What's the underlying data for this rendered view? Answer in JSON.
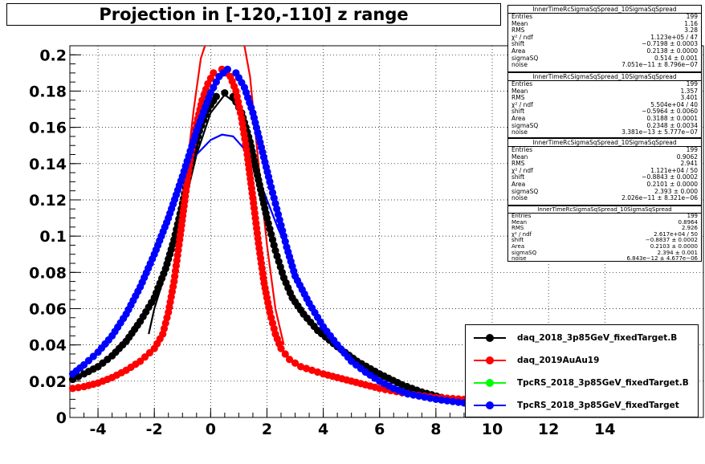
{
  "title": "Projection in [-120,-110] z range",
  "colors": {
    "black": "#000000",
    "red": "#ff0000",
    "green": "#00ff00",
    "blue": "#0000ff"
  },
  "chart_data": {
    "type": "scatter",
    "title": "Projection in [-120,-110] z range",
    "xlabel": "",
    "ylabel": "",
    "xlim": [
      -5,
      17.5
    ],
    "ylim": [
      0,
      0.205
    ],
    "grid": true,
    "legend_position": "bottom-right",
    "xticks": [
      "-4",
      "-2",
      "0",
      "2",
      "4",
      "6",
      "8",
      "10",
      "12",
      "14"
    ],
    "xtick_values": [
      -4,
      -2,
      0,
      2,
      4,
      6,
      8,
      10,
      12,
      14
    ],
    "yticks": [
      "0",
      "0.02",
      "0.04",
      "0.06",
      "0.08",
      "0.1",
      "0.12",
      "0.14",
      "0.16",
      "0.18",
      "0.2"
    ],
    "ytick_values": [
      0,
      0.02,
      0.04,
      0.06,
      0.08,
      0.1,
      0.12,
      0.14,
      0.16,
      0.18,
      0.2
    ],
    "series": [
      {
        "name": "daq_2018_3p85GeV_fixedTarget.B",
        "color": "#000000",
        "points": [
          [
            -4.9,
            0.021
          ],
          [
            -4.5,
            0.024
          ],
          [
            -4.0,
            0.028
          ],
          [
            -3.5,
            0.034
          ],
          [
            -3.0,
            0.042
          ],
          [
            -2.5,
            0.053
          ],
          [
            -2.0,
            0.066
          ],
          [
            -1.6,
            0.082
          ],
          [
            -1.3,
            0.098
          ],
          [
            -1.0,
            0.118
          ],
          [
            -0.7,
            0.14
          ],
          [
            -0.4,
            0.158
          ],
          [
            -0.1,
            0.17
          ],
          [
            0.2,
            0.177
          ],
          [
            0.5,
            0.179
          ],
          [
            0.8,
            0.177
          ],
          [
            1.1,
            0.168
          ],
          [
            1.4,
            0.152
          ],
          [
            1.7,
            0.131
          ],
          [
            2.0,
            0.11
          ],
          [
            2.3,
            0.092
          ],
          [
            2.6,
            0.077
          ],
          [
            2.9,
            0.066
          ],
          [
            3.3,
            0.057
          ],
          [
            3.8,
            0.048
          ],
          [
            4.5,
            0.039
          ],
          [
            5.2,
            0.031
          ],
          [
            6.0,
            0.024
          ],
          [
            6.8,
            0.018
          ],
          [
            7.5,
            0.014
          ],
          [
            8.2,
            0.011
          ],
          [
            9.0,
            0.008
          ],
          [
            10.0,
            0.006
          ]
        ]
      },
      {
        "name": "daq_2019AuAu19",
        "color": "#ff0000",
        "points": [
          [
            -4.9,
            0.016
          ],
          [
            -4.5,
            0.017
          ],
          [
            -4.0,
            0.019
          ],
          [
            -3.5,
            0.022
          ],
          [
            -3.0,
            0.026
          ],
          [
            -2.5,
            0.031
          ],
          [
            -2.0,
            0.038
          ],
          [
            -1.7,
            0.046
          ],
          [
            -1.5,
            0.058
          ],
          [
            -1.3,
            0.075
          ],
          [
            -1.1,
            0.098
          ],
          [
            -0.9,
            0.122
          ],
          [
            -0.7,
            0.145
          ],
          [
            -0.5,
            0.162
          ],
          [
            -0.3,
            0.175
          ],
          [
            -0.1,
            0.184
          ],
          [
            0.1,
            0.19
          ],
          [
            0.4,
            0.192
          ],
          [
            0.7,
            0.188
          ],
          [
            0.9,
            0.18
          ],
          [
            1.1,
            0.165
          ],
          [
            1.3,
            0.145
          ],
          [
            1.5,
            0.121
          ],
          [
            1.7,
            0.096
          ],
          [
            1.9,
            0.074
          ],
          [
            2.1,
            0.058
          ],
          [
            2.3,
            0.046
          ],
          [
            2.5,
            0.038
          ],
          [
            2.8,
            0.032
          ],
          [
            3.2,
            0.028
          ],
          [
            4.0,
            0.024
          ],
          [
            5.0,
            0.02
          ],
          [
            6.0,
            0.016
          ],
          [
            7.0,
            0.013
          ],
          [
            8.0,
            0.011
          ],
          [
            9.0,
            0.01
          ],
          [
            10.0,
            0.009
          ]
        ]
      },
      {
        "name": "TpcRS_2018_3p85GeV_fixedTarget.B",
        "color": "#00ff00",
        "points": []
      },
      {
        "name": "TpcRS_2018_3p85GeV_fixedTarget",
        "color": "#0000ff",
        "points": [
          [
            -4.9,
            0.024
          ],
          [
            -4.5,
            0.029
          ],
          [
            -4.0,
            0.036
          ],
          [
            -3.5,
            0.045
          ],
          [
            -3.0,
            0.057
          ],
          [
            -2.5,
            0.072
          ],
          [
            -2.0,
            0.09
          ],
          [
            -1.5,
            0.11
          ],
          [
            -1.0,
            0.133
          ],
          [
            -0.5,
            0.158
          ],
          [
            0.0,
            0.179
          ],
          [
            0.3,
            0.188
          ],
          [
            0.6,
            0.192
          ],
          [
            0.9,
            0.19
          ],
          [
            1.2,
            0.182
          ],
          [
            1.5,
            0.168
          ],
          [
            1.8,
            0.149
          ],
          [
            2.1,
            0.13
          ],
          [
            2.4,
            0.112
          ],
          [
            2.7,
            0.094
          ],
          [
            3.0,
            0.078
          ],
          [
            3.5,
            0.063
          ],
          [
            4.0,
            0.05
          ],
          [
            4.5,
            0.04
          ],
          [
            5.0,
            0.031
          ],
          [
            5.5,
            0.025
          ],
          [
            6.0,
            0.02
          ],
          [
            6.5,
            0.016
          ],
          [
            7.0,
            0.013
          ],
          [
            8.0,
            0.01
          ],
          [
            9.0,
            0.008
          ],
          [
            10.0,
            0.007
          ]
        ]
      }
    ],
    "fit_curves": [
      {
        "series": "daq_2018_3p85GeV_fixedTarget.B",
        "color": "#000000",
        "points": [
          [
            -2.2,
            0.046
          ],
          [
            -2.0,
            0.06
          ],
          [
            -1.5,
            0.085
          ],
          [
            -1.0,
            0.113
          ],
          [
            -0.5,
            0.145
          ],
          [
            0.0,
            0.168
          ],
          [
            0.5,
            0.178
          ],
          [
            1.0,
            0.172
          ],
          [
            1.5,
            0.148
          ],
          [
            2.0,
            0.112
          ],
          [
            2.5,
            0.078
          ]
        ]
      },
      {
        "series": "daq_2019AuAu19",
        "color": "#ff0000",
        "points": [
          [
            -1.5,
            0.055
          ],
          [
            -1.2,
            0.09
          ],
          [
            -0.9,
            0.13
          ],
          [
            -0.6,
            0.17
          ],
          [
            -0.35,
            0.198
          ],
          [
            -0.2,
            0.205
          ]
        ]
      },
      {
        "series": "daq_2019AuAu19",
        "color": "#ff0000",
        "points": [
          [
            1.2,
            0.205
          ],
          [
            1.4,
            0.188
          ],
          [
            1.7,
            0.14
          ],
          [
            2.0,
            0.095
          ],
          [
            2.3,
            0.06
          ],
          [
            2.6,
            0.04
          ]
        ]
      },
      {
        "series": "TpcRS_2018_3p85GeV_fixedTarget",
        "color": "#0000ff",
        "points": [
          [
            -2.4,
            0.074
          ],
          [
            -2.0,
            0.092
          ],
          [
            -1.5,
            0.112
          ],
          [
            -1.0,
            0.13
          ],
          [
            -0.5,
            0.145
          ],
          [
            0.0,
            0.153
          ],
          [
            0.4,
            0.156
          ],
          [
            0.8,
            0.155
          ],
          [
            1.2,
            0.148
          ],
          [
            1.6,
            0.136
          ],
          [
            2.0,
            0.12
          ],
          [
            2.4,
            0.104
          ],
          [
            2.8,
            0.09
          ]
        ]
      }
    ]
  },
  "stats": [
    {
      "header": "InnerTimeRcSigmaSqSpread_10SigmaSqSpread",
      "rows": [
        {
          "label": "Entries",
          "value": "199"
        },
        {
          "label": "Mean",
          "value": "1.16"
        },
        {
          "label": "RMS",
          "value": "3.28"
        },
        {
          "label": "χ² / ndf",
          "value": "1.123e+05 / 47"
        },
        {
          "label": "shift",
          "value": "−0.7198 ± 0.0003"
        },
        {
          "label": "Area",
          "value": "0.2138 ± 0.0000"
        },
        {
          "label": "sigmaSQ",
          "value": "0.514 ± 0.001"
        },
        {
          "label": "noise",
          "value": "7.051e−11 ± 8.796e−07"
        }
      ]
    },
    {
      "header": "InnerTimeRcSigmaSqSpread_10SigmaSqSpread",
      "rows": [
        {
          "label": "Entries",
          "value": "199"
        },
        {
          "label": "Mean",
          "value": "1.357"
        },
        {
          "label": "RMS",
          "value": "3.401"
        },
        {
          "label": "χ² / ndf",
          "value": "5.504e+04 / 40"
        },
        {
          "label": "shift",
          "value": "−0.5964 ± 0.0060"
        },
        {
          "label": "Area",
          "value": "0.3188 ± 0.0001"
        },
        {
          "label": "sigmaSQ",
          "value": "0.2348 ± 0.0034"
        },
        {
          "label": "noise",
          "value": "3.381e−13 ± 5.777e−07"
        }
      ]
    },
    {
      "header": "InnerTimeRcSigmaSqSpread_10SigmaSqSpread",
      "rows": [
        {
          "label": "Entries",
          "value": "199"
        },
        {
          "label": "Mean",
          "value": "0.9062"
        },
        {
          "label": "RMS",
          "value": "2.941"
        },
        {
          "label": "χ² / ndf",
          "value": "1.121e+04 / 50"
        },
        {
          "label": "shift",
          "value": "−0.8843 ± 0.0002"
        },
        {
          "label": "Area",
          "value": "0.2101 ± 0.0000"
        },
        {
          "label": "sigmaSQ",
          "value": "2.393 ± 0.000"
        },
        {
          "label": "noise",
          "value": "2.026e−11 ± 8.321e−06"
        }
      ]
    },
    {
      "header": "InnerTimeRcSigmaSqSpread_10SigmaSqSpread",
      "rows": [
        {
          "label": "Entries",
          "value": "199"
        },
        {
          "label": "Mean",
          "value": "0.8964"
        },
        {
          "label": "RMS",
          "value": "2.926"
        },
        {
          "label": "χ² / ndf",
          "value": "2.617e+04 / 50"
        },
        {
          "label": "shift",
          "value": "−0.8837 ± 0.0002"
        },
        {
          "label": "Area",
          "value": "0.2103 ± 0.0000"
        },
        {
          "label": "sigmaSQ",
          "value": "2.394 ± 0.001"
        },
        {
          "label": "noise",
          "value": "6.843e−12 ± 4.677e−06"
        }
      ]
    }
  ],
  "legend": [
    {
      "label": "daq_2018_3p85GeV_fixedTarget.B",
      "color": "#000000"
    },
    {
      "label": "daq_2019AuAu19",
      "color": "#ff0000"
    },
    {
      "label": "TpcRS_2018_3p85GeV_fixedTarget.B",
      "color": "#00ff00"
    },
    {
      "label": "TpcRS_2018_3p85GeV_fixedTarget",
      "color": "#0000ff"
    }
  ]
}
